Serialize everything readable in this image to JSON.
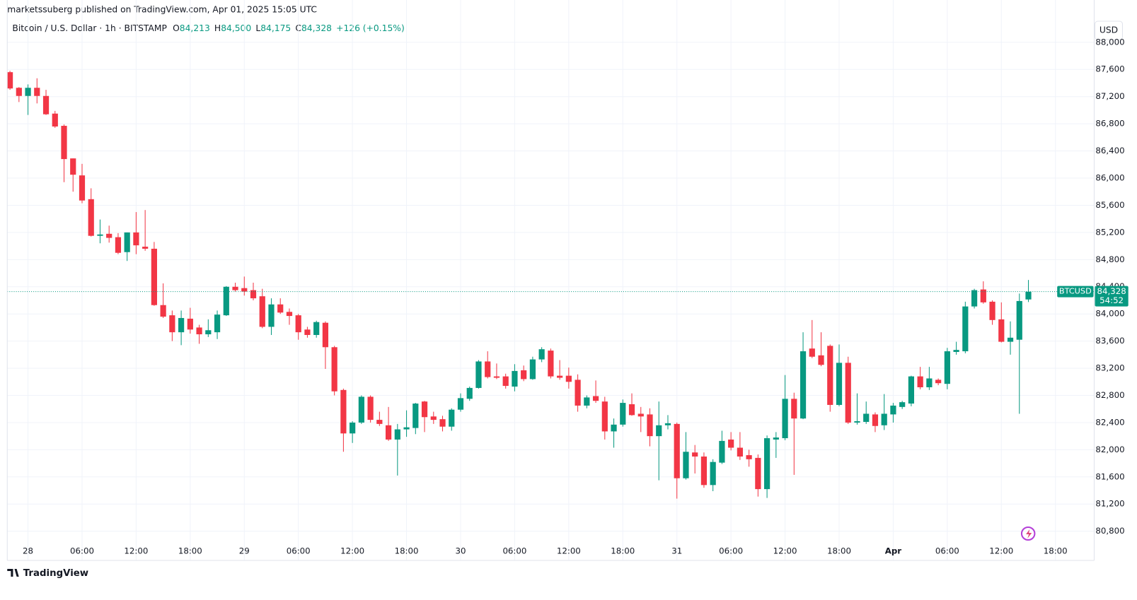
{
  "header": {
    "published": "marketssuberg published on TradingView.com, Apr 01, 2025 15:05 UTC"
  },
  "footer": {
    "brand": "TradingView"
  },
  "currency_button": "USD",
  "price_tag": {
    "symbol": "BTCUSD",
    "price": "84,328",
    "countdown": "54:52"
  },
  "legend": {
    "ohlc": [
      {
        "label": "O",
        "value": "84,213"
      },
      {
        "label": "H",
        "value": "84,500"
      },
      {
        "label": "L",
        "value": "84,175"
      },
      {
        "label": "C",
        "value": "84,328"
      }
    ],
    "change": "+126 (+0.15%)"
  },
  "chart_data": {
    "type": "candlestick",
    "title": "Bitcoin / U.S. Dollar · 1h · BITSTAMP",
    "up_color": "#089981",
    "down_color": "#f23645",
    "grid": true,
    "xlim": [
      -0.3,
      120.3
    ],
    "xticks": [
      {
        "value": 2,
        "label": "28"
      },
      {
        "value": 8,
        "label": "06:00"
      },
      {
        "value": 14,
        "label": "12:00"
      },
      {
        "value": 20,
        "label": "18:00"
      },
      {
        "value": 26,
        "label": "29"
      },
      {
        "value": 32,
        "label": "06:00"
      },
      {
        "value": 38,
        "label": "12:00"
      },
      {
        "value": 44,
        "label": "18:00"
      },
      {
        "value": 50,
        "label": "30"
      },
      {
        "value": 56,
        "label": "06:00"
      },
      {
        "value": 62,
        "label": "12:00"
      },
      {
        "value": 68,
        "label": "18:00"
      },
      {
        "value": 74,
        "label": "31"
      },
      {
        "value": 80,
        "label": "06:00"
      },
      {
        "value": 86,
        "label": "12:00"
      },
      {
        "value": 92,
        "label": "18:00"
      },
      {
        "value": 98,
        "label": "Apr"
      },
      {
        "value": 104,
        "label": "06:00"
      },
      {
        "value": 110,
        "label": "12:00"
      },
      {
        "value": 116,
        "label": "18:00"
      }
    ],
    "ylim": [
      80370,
      88040
    ],
    "yticks": [
      {
        "value": 80800,
        "label": "80,800"
      },
      {
        "value": 81200,
        "label": "81,200"
      },
      {
        "value": 81600,
        "label": "81,600"
      },
      {
        "value": 82000,
        "label": "82,000"
      },
      {
        "value": 82400,
        "label": "82,400"
      },
      {
        "value": 82800,
        "label": "82,800"
      },
      {
        "value": 83200,
        "label": "83,200"
      },
      {
        "value": 83600,
        "label": "83,600"
      },
      {
        "value": 84000,
        "label": "84,000"
      },
      {
        "value": 84400,
        "label": "84,400"
      },
      {
        "value": 84800,
        "label": "84,800"
      },
      {
        "value": 85200,
        "label": "85,200"
      },
      {
        "value": 85600,
        "label": "85,600"
      },
      {
        "value": 86000,
        "label": "86,000"
      },
      {
        "value": 86400,
        "label": "86,400"
      },
      {
        "value": 86800,
        "label": "86,800"
      },
      {
        "value": 87200,
        "label": "87,200"
      },
      {
        "value": 87600,
        "label": "87,600"
      },
      {
        "value": 88000,
        "label": "88,000"
      }
    ],
    "open": [
      87560,
      87330,
      87210,
      87330,
      87210,
      86950,
      86770,
      86290,
      86040,
      85690,
      85150,
      85180,
      85130,
      84910,
      85200,
      84990,
      84960,
      84130,
      83980,
      83730,
      83930,
      83800,
      83700,
      83730,
      83980,
      84400,
      84380,
      84350,
      84260,
      83810,
      84140,
      84030,
      83980,
      83770,
      83690,
      83870,
      83510,
      82880,
      82240,
      82400,
      82780,
      82440,
      82360,
      82150,
      82300,
      82320,
      82710,
      82490,
      82450,
      82340,
      82590,
      82750,
      82910,
      83300,
      83080,
      83080,
      82930,
      83170,
      83040,
      83330,
      83460,
      83090,
      83090,
      83030,
      82650,
      82790,
      82710,
      82270,
      82370,
      82670,
      82530,
      82520,
      82200,
      82360,
      82380,
      81580,
      81960,
      81900,
      81480,
      81810,
      82150,
      82030,
      81920,
      81880,
      81420,
      82150,
      82170,
      82750,
      82460,
      83490,
      83390,
      83530,
      82660,
      83280,
      82400,
      82410,
      82520,
      82360,
      82520,
      82630,
      82680,
      83080,
      82920,
      83030,
      82970,
      83440,
      83450,
      84110,
      84360,
      84180,
      83920,
      83590,
      83620,
      84213
    ],
    "high": [
      87580,
      87340,
      87380,
      87470,
      87300,
      86990,
      86790,
      86290,
      86210,
      85850,
      85390,
      85300,
      85190,
      85200,
      85500,
      85530,
      85060,
      84450,
      84050,
      84050,
      84090,
      83840,
      83920,
      84050,
      84410,
      84460,
      84550,
      84460,
      84370,
      84230,
      84230,
      84080,
      84000,
      83810,
      83900,
      83890,
      83530,
      82900,
      82420,
      82800,
      82800,
      82560,
      82630,
      82380,
      82580,
      82690,
      82720,
      82560,
      82500,
      82610,
      82830,
      82930,
      83320,
      83450,
      83270,
      83120,
      83260,
      83240,
      83370,
      83510,
      83490,
      83320,
      83210,
      83110,
      82800,
      83020,
      82780,
      82460,
      82740,
      82830,
      82630,
      82610,
      82710,
      82510,
      82400,
      82260,
      82070,
      81960,
      81860,
      82280,
      82260,
      82260,
      82000,
      81930,
      82210,
      82260,
      83100,
      82840,
      83730,
      83910,
      83730,
      83550,
      83550,
      83370,
      82830,
      82710,
      82550,
      82820,
      82690,
      82720,
      83090,
      83220,
      83220,
      83050,
      83500,
      83590,
      84180,
      84370,
      84480,
      84200,
      84170,
      83890,
      84300,
      84500
    ],
    "low": [
      87300,
      87120,
      86930,
      87100,
      86930,
      86740,
      85940,
      85800,
      85630,
      85140,
      85040,
      85050,
      84880,
      84780,
      84880,
      84930,
      84120,
      83940,
      83600,
      83540,
      83710,
      83560,
      83660,
      83630,
      83970,
      84330,
      84270,
      84200,
      83790,
      83690,
      84000,
      83840,
      83620,
      83650,
      83650,
      83190,
      82800,
      81970,
      82100,
      82380,
      82400,
      82350,
      82130,
      81620,
      82190,
      82230,
      82260,
      82380,
      82270,
      82280,
      82560,
      82720,
      82900,
      83050,
      83040,
      82900,
      82860,
      83010,
      83030,
      83290,
      83050,
      83030,
      82900,
      82560,
      82610,
      82690,
      82150,
      82030,
      82340,
      82500,
      82260,
      82050,
      81550,
      82300,
      81280,
      81560,
      81650,
      81440,
      81390,
      81790,
      81990,
      81850,
      81750,
      81310,
      81290,
      81880,
      82140,
      81630,
      82450,
      83350,
      83230,
      82560,
      82640,
      82380,
      82370,
      82380,
      82260,
      82290,
      82400,
      82600,
      82640,
      82890,
      82880,
      82950,
      82890,
      83400,
      83420,
      84080,
      84150,
      83840,
      83580,
      83400,
      82530,
      84175
    ],
    "close": [
      87320,
      87210,
      87330,
      87210,
      86940,
      86760,
      86280,
      86050,
      85670,
      85150,
      85170,
      85120,
      84900,
      85200,
      85010,
      84960,
      84130,
      83960,
      83730,
      83940,
      83770,
      83700,
      83760,
      83990,
      84400,
      84350,
      84330,
      84230,
      83810,
      84140,
      84020,
      83970,
      83730,
      83690,
      83880,
      83510,
      82860,
      82240,
      82400,
      82780,
      82440,
      82380,
      82150,
      82300,
      82330,
      82680,
      82480,
      82440,
      82340,
      82590,
      82760,
      82910,
      83300,
      83070,
      83060,
      82940,
      83160,
      83040,
      83330,
      83480,
      83080,
      83060,
      83000,
      82650,
      82770,
      82720,
      82270,
      82370,
      82690,
      82510,
      82490,
      82200,
      82360,
      82390,
      81580,
      81970,
      81900,
      81480,
      81820,
      82130,
      82030,
      81900,
      81860,
      81420,
      82170,
      82180,
      82750,
      82460,
      83450,
      83370,
      83250,
      82660,
      83280,
      82400,
      82420,
      82530,
      82350,
      82530,
      82650,
      82700,
      83080,
      82920,
      83050,
      82980,
      83450,
      83470,
      84110,
      84350,
      84170,
      83910,
      83590,
      83650,
      84190,
      84328
    ]
  }
}
